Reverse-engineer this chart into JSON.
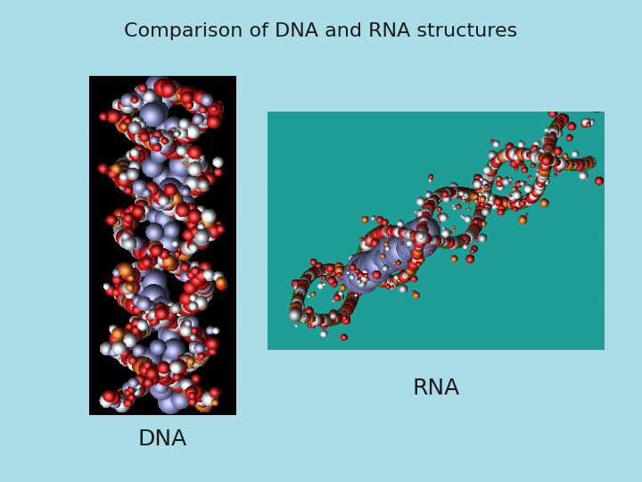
{
  "title": "Comparison of DNA and RNA structures",
  "title_fontsize": 16,
  "title_color": "#1a1a1a",
  "background_color": "#aadde8",
  "dna_label": "DNA",
  "rna_label": "RNA",
  "label_fontsize": 18,
  "dna_bg": "#000000",
  "rna_bg": "#1e9e96",
  "fig_w": 7.2,
  "fig_h": 5.4,
  "dpi": 100
}
